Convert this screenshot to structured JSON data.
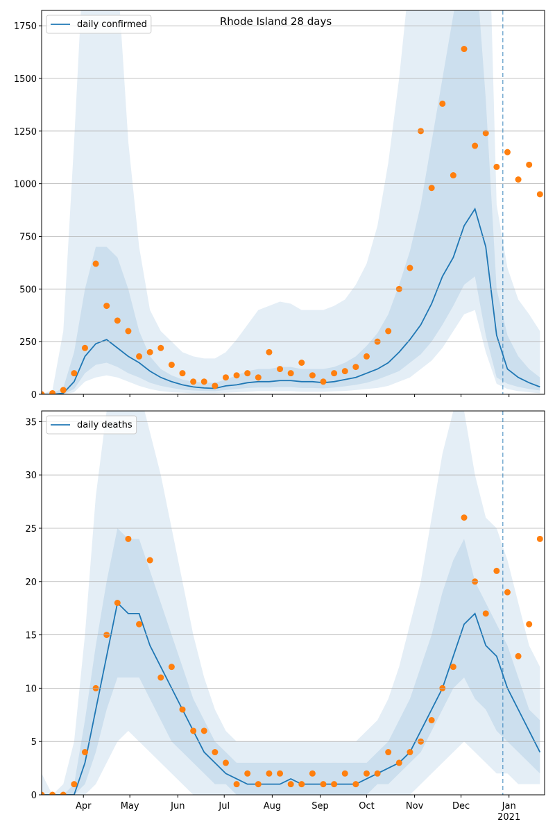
{
  "chart_data": [
    {
      "type": "line",
      "title": "Rhode Island 28 days",
      "legend": "upper left",
      "grid": "y",
      "band_color": "#1f77b4",
      "vline_x": 298,
      "x": [
        0,
        7,
        14,
        21,
        28,
        35,
        42,
        49,
        56,
        63,
        70,
        77,
        84,
        91,
        98,
        105,
        112,
        119,
        126,
        133,
        140,
        147,
        154,
        161,
        168,
        175,
        182,
        189,
        196,
        203,
        210,
        217,
        224,
        231,
        238,
        245,
        252,
        259,
        266,
        273,
        280,
        287,
        294,
        301,
        308,
        315,
        322
      ],
      "xlim": [
        0,
        325
      ],
      "xticks": [
        27,
        57,
        88,
        118,
        149,
        180,
        210,
        241,
        271,
        302
      ],
      "ylim": [
        0,
        1823
      ],
      "yticks": [
        0,
        250,
        500,
        750,
        1000,
        1250,
        1500,
        1750
      ],
      "bands": [
        {
          "lower": [
            0,
            0,
            0,
            10,
            60,
            80,
            90,
            80,
            60,
            40,
            25,
            15,
            10,
            8,
            5,
            5,
            5,
            8,
            10,
            12,
            15,
            15,
            15,
            15,
            12,
            12,
            12,
            14,
            16,
            20,
            25,
            30,
            40,
            60,
            80,
            120,
            160,
            220,
            300,
            380,
            400,
            200,
            50,
            25,
            15,
            10,
            5
          ],
          "upper": [
            0,
            20,
            300,
            1200,
            2200,
            2400,
            2300,
            2000,
            1200,
            700,
            400,
            300,
            250,
            200,
            180,
            170,
            170,
            200,
            260,
            330,
            400,
            420,
            440,
            430,
            400,
            400,
            400,
            420,
            450,
            520,
            620,
            800,
            1100,
            1500,
            2000,
            2500,
            2800,
            3000,
            3000,
            3000,
            3000,
            2800,
            900,
            600,
            450,
            380,
            300
          ]
        },
        {
          "lower": [
            0,
            0,
            1,
            25,
            100,
            140,
            150,
            130,
            100,
            80,
            55,
            40,
            30,
            22,
            18,
            16,
            15,
            20,
            25,
            30,
            32,
            32,
            34,
            34,
            30,
            30,
            28,
            32,
            38,
            45,
            55,
            70,
            90,
            110,
            150,
            190,
            250,
            330,
            420,
            520,
            560,
            280,
            80,
            50,
            35,
            25,
            18
          ],
          "upper": [
            0,
            5,
            30,
            200,
            500,
            700,
            700,
            650,
            500,
            300,
            180,
            120,
            90,
            70,
            60,
            55,
            55,
            70,
            90,
            110,
            120,
            120,
            130,
            130,
            120,
            120,
            120,
            130,
            150,
            180,
            230,
            290,
            380,
            520,
            680,
            900,
            1200,
            1500,
            1800,
            2100,
            2100,
            1400,
            500,
            280,
            180,
            120,
            80
          ]
        }
      ],
      "series": [
        {
          "name": "daily confirmed",
          "color": "#1f77b4",
          "values": [
            0,
            0,
            5,
            60,
            180,
            240,
            260,
            220,
            180,
            150,
            110,
            80,
            60,
            45,
            35,
            30,
            28,
            40,
            45,
            55,
            60,
            60,
            65,
            65,
            60,
            60,
            55,
            60,
            70,
            80,
            100,
            120,
            150,
            200,
            260,
            330,
            430,
            560,
            650,
            800,
            880,
            700,
            280,
            120,
            80,
            55,
            35
          ]
        },
        {
          "marker": "o",
          "color": "#ff7f0e",
          "values": [
            0,
            5,
            20,
            100,
            220,
            620,
            420,
            350,
            300,
            180,
            200,
            220,
            140,
            100,
            60,
            60,
            40,
            80,
            90,
            100,
            80,
            200,
            120,
            100,
            150,
            90,
            60,
            100,
            110,
            130,
            180,
            250,
            300,
            500,
            600,
            1250,
            980,
            1380,
            1040,
            1640,
            1180,
            1240,
            1080,
            1150,
            1020,
            1090,
            950
          ]
        }
      ]
    },
    {
      "type": "line",
      "legend": "upper left",
      "grid": "y",
      "band_color": "#1f77b4",
      "vline_x": 298,
      "x": [
        0,
        7,
        14,
        21,
        28,
        35,
        42,
        49,
        56,
        63,
        70,
        77,
        84,
        91,
        98,
        105,
        112,
        119,
        126,
        133,
        140,
        147,
        154,
        161,
        168,
        175,
        182,
        189,
        196,
        203,
        210,
        217,
        224,
        231,
        238,
        245,
        252,
        259,
        266,
        273,
        280,
        287,
        294,
        301,
        308,
        315,
        322
      ],
      "xlim": [
        0,
        325
      ],
      "xticks": [
        {
          "value": 27,
          "label": "Apr"
        },
        {
          "value": 57,
          "label": "May"
        },
        {
          "value": 88,
          "label": "Jun"
        },
        {
          "value": 118,
          "label": "Jul"
        },
        {
          "value": 149,
          "label": "Aug"
        },
        {
          "value": 180,
          "label": "Sep"
        },
        {
          "value": 210,
          "label": "Oct"
        },
        {
          "value": 241,
          "label": "Nov"
        },
        {
          "value": 271,
          "label": "Dec"
        },
        {
          "value": 302,
          "label": "Jan",
          "sublabel": "2021"
        }
      ],
      "ylim": [
        0,
        36
      ],
      "yticks": [
        0,
        5,
        10,
        15,
        20,
        25,
        30,
        35
      ],
      "bands": [
        {
          "lower": [
            0,
            0,
            0,
            0,
            0,
            1,
            3,
            5,
            6,
            5,
            4,
            3,
            2,
            1,
            0,
            0,
            0,
            0,
            0,
            0,
            0,
            0,
            0,
            0,
            0,
            0,
            0,
            0,
            0,
            0,
            0,
            0,
            0,
            0,
            0,
            1,
            2,
            3,
            4,
            5,
            4,
            3,
            2,
            2,
            1,
            1,
            1
          ],
          "upper": [
            2,
            0,
            1,
            5,
            15,
            28,
            36,
            40,
            40,
            38,
            34,
            30,
            25,
            20,
            15,
            11,
            8,
            6,
            5,
            5,
            5,
            5,
            5,
            5,
            5,
            5,
            5,
            5,
            5,
            5,
            6,
            7,
            9,
            12,
            16,
            20,
            26,
            32,
            36,
            36,
            30,
            26,
            25,
            22,
            18,
            14,
            12
          ]
        },
        {
          "lower": [
            0,
            0,
            0,
            0,
            1,
            4,
            8,
            11,
            11,
            11,
            9,
            7,
            5,
            4,
            3,
            2,
            1,
            1,
            0,
            0,
            0,
            0,
            0,
            0,
            0,
            0,
            0,
            0,
            0,
            0,
            0,
            1,
            1,
            2,
            3,
            4,
            6,
            8,
            10,
            11,
            9,
            8,
            6,
            5,
            4,
            3,
            2
          ],
          "upper": [
            0,
            0,
            0,
            1,
            7,
            14,
            20,
            25,
            24,
            24,
            21,
            18,
            15,
            12,
            9,
            7,
            5,
            4,
            3,
            3,
            3,
            3,
            3,
            3,
            3,
            3,
            3,
            3,
            3,
            3,
            3,
            4,
            5,
            7,
            9,
            12,
            15,
            19,
            22,
            24,
            20,
            18,
            16,
            14,
            11,
            8,
            7
          ]
        }
      ],
      "series": [
        {
          "name": "daily deaths",
          "color": "#1f77b4",
          "values": [
            0,
            0,
            0,
            0,
            3,
            8,
            13,
            18,
            17,
            17,
            14,
            12,
            10,
            8,
            6,
            4,
            3,
            2,
            1.5,
            1,
            1,
            1,
            1,
            1.5,
            1,
            1,
            1,
            1,
            1,
            1,
            1.5,
            2,
            2.5,
            3,
            4,
            6,
            8,
            10,
            13,
            16,
            17,
            14,
            13,
            10,
            8,
            6,
            4
          ]
        },
        {
          "marker": "o",
          "color": "#ff7f0e",
          "values": [
            0,
            0,
            0,
            1,
            4,
            10,
            15,
            18,
            24,
            16,
            22,
            11,
            12,
            8,
            6,
            6,
            4,
            3,
            1,
            2,
            1,
            2,
            2,
            1,
            1,
            2,
            1,
            1,
            2,
            1,
            2,
            2,
            4,
            3,
            4,
            5,
            7,
            10,
            12,
            26,
            20,
            17,
            21,
            19,
            13,
            16,
            24
          ]
        }
      ]
    }
  ]
}
